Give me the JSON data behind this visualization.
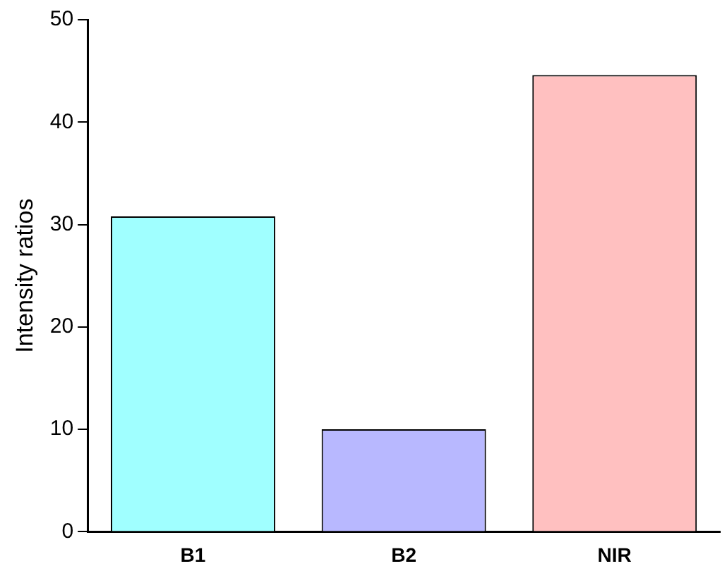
{
  "chart_data": {
    "type": "bar",
    "ylabel": "Intensity ratios",
    "categories": [
      "B1",
      "B2",
      "NIR"
    ],
    "values": [
      30.8,
      10,
      44.6
    ],
    "colors": [
      "#a0ffff",
      "#b8b8ff",
      "#ffc0c0"
    ],
    "ylim": [
      0,
      50
    ],
    "yticks": [
      0,
      10,
      20,
      30,
      40,
      50
    ],
    "grid": false,
    "legend": false
  }
}
